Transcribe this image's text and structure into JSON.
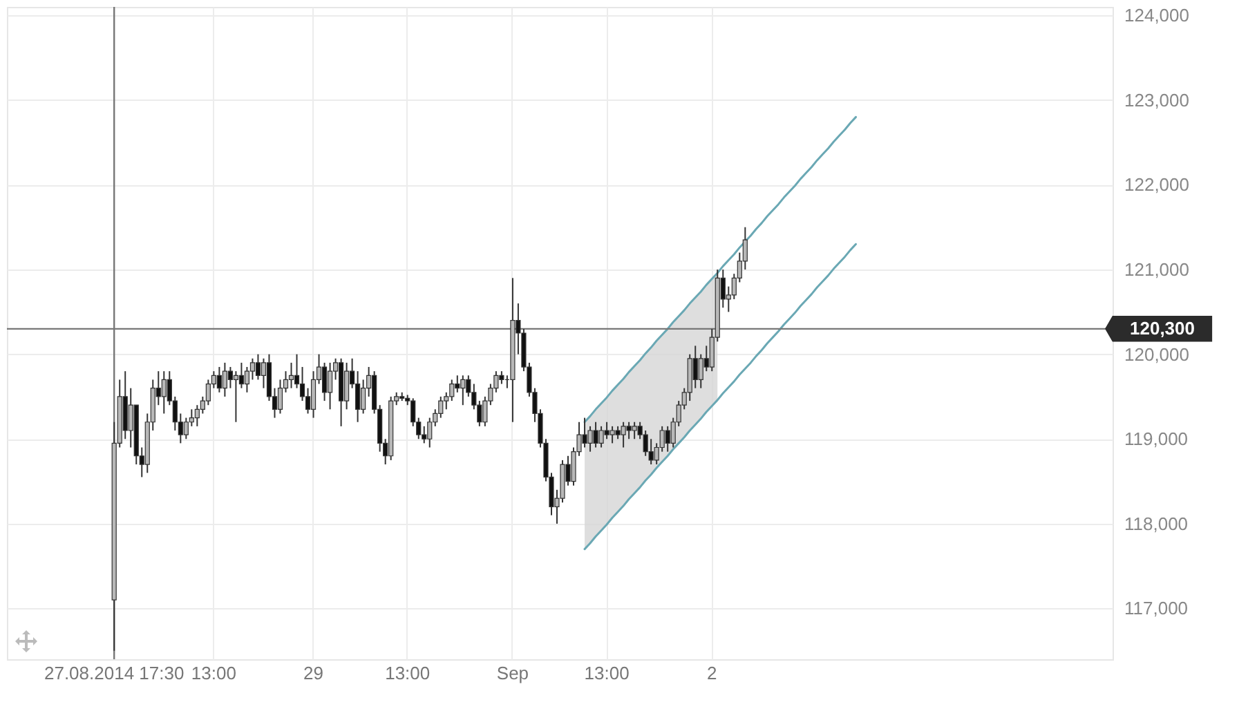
{
  "chart_data": {
    "type": "candlestick",
    "categories": [
      null,
      null,
      null,
      null,
      null,
      null,
      null,
      null,
      null,
      null,
      null,
      null,
      null,
      null,
      null,
      null,
      null,
      null,
      null,
      "27.08.2014 17:30",
      null,
      null,
      null,
      null,
      null,
      null,
      null,
      null,
      null,
      null,
      null,
      null,
      null,
      null,
      null,
      null,
      null,
      "13:00",
      null,
      null,
      null,
      null,
      null,
      null,
      null,
      null,
      null,
      null,
      null,
      null,
      null,
      null,
      null,
      null,
      null,
      "29",
      null,
      null,
      null,
      null,
      null,
      null,
      null,
      null,
      null,
      null,
      null,
      null,
      null,
      null,
      null,
      null,
      "13:00",
      null,
      null,
      null,
      null,
      null,
      null,
      null,
      null,
      null,
      null,
      null,
      null,
      null,
      null,
      null,
      null,
      null,
      null,
      "Sep",
      null,
      null,
      null,
      null,
      null,
      null,
      null,
      null,
      null,
      null,
      null,
      null,
      null,
      null,
      null,
      null,
      "13:00",
      null,
      null,
      null,
      null,
      null,
      null,
      null,
      null,
      null,
      null,
      null,
      null,
      null,
      null,
      null,
      null,
      null,
      null,
      "2",
      null,
      null,
      null,
      null,
      null,
      null,
      null,
      null,
      null,
      null,
      null,
      null,
      null,
      null,
      null,
      null,
      null,
      null,
      null,
      null,
      null,
      null,
      null,
      null,
      null,
      null,
      null,
      null,
      null,
      null,
      null,
      null,
      null,
      null,
      null,
      null,
      null,
      null,
      null,
      null,
      null,
      null,
      null,
      null,
      null,
      null,
      null,
      null,
      null,
      null,
      null,
      null,
      null,
      null,
      null,
      null,
      null,
      null,
      null,
      null,
      null,
      null,
      null,
      null,
      null,
      null,
      null,
      null,
      null,
      null,
      null,
      null
    ],
    "ohlc": [
      null,
      null,
      null,
      null,
      null,
      null,
      null,
      null,
      null,
      null,
      null,
      null,
      null,
      null,
      null,
      null,
      null,
      null,
      null,
      [
        117100,
        119200,
        116500,
        118950
      ],
      [
        118950,
        119700,
        118900,
        119500
      ],
      [
        119500,
        119800,
        119000,
        119100
      ],
      [
        119100,
        119600,
        118900,
        119400
      ],
      [
        119400,
        119400,
        118700,
        118800
      ],
      [
        118800,
        118900,
        118550,
        118700
      ],
      [
        118700,
        119300,
        118600,
        119200
      ],
      [
        119200,
        119700,
        119100,
        119600
      ],
      [
        119600,
        119800,
        119400,
        119500
      ],
      [
        119500,
        119800,
        119300,
        119700
      ],
      [
        119700,
        119800,
        119400,
        119450
      ],
      [
        119450,
        119500,
        119100,
        119200
      ],
      [
        119200,
        119300,
        118950,
        119050
      ],
      [
        119050,
        119250,
        119000,
        119200
      ],
      [
        119200,
        119350,
        119150,
        119250
      ],
      [
        119250,
        119400,
        119150,
        119350
      ],
      [
        119350,
        119500,
        119300,
        119450
      ],
      [
        119450,
        119700,
        119400,
        119650
      ],
      [
        119650,
        119800,
        119600,
        119750
      ],
      [
        119750,
        119850,
        119550,
        119600
      ],
      [
        119600,
        119900,
        119500,
        119800
      ],
      [
        119800,
        119850,
        119600,
        119700
      ],
      [
        119700,
        119800,
        119200,
        119750
      ],
      [
        119750,
        119900,
        119600,
        119650
      ],
      [
        119650,
        119850,
        119550,
        119800
      ],
      [
        119800,
        119950,
        119700,
        119900
      ],
      [
        119900,
        120000,
        119700,
        119750
      ],
      [
        119750,
        119950,
        119600,
        119900
      ],
      [
        119900,
        120000,
        119450,
        119500
      ],
      [
        119500,
        119600,
        119250,
        119350
      ],
      [
        119350,
        119700,
        119300,
        119600
      ],
      [
        119600,
        119800,
        119550,
        119700
      ],
      [
        119700,
        119900,
        119600,
        119750
      ],
      [
        119750,
        120000,
        119600,
        119650
      ],
      [
        119650,
        119850,
        119450,
        119500
      ],
      [
        119500,
        119600,
        119300,
        119350
      ],
      [
        119350,
        119800,
        119250,
        119700
      ],
      [
        119700,
        120000,
        119650,
        119850
      ],
      [
        119850,
        119900,
        119450,
        119550
      ],
      [
        119550,
        119900,
        119350,
        119800
      ],
      [
        119800,
        119950,
        119700,
        119900
      ],
      [
        119900,
        119950,
        119150,
        119450
      ],
      [
        119450,
        119900,
        119350,
        119800
      ],
      [
        119800,
        119950,
        119600,
        119650
      ],
      [
        119650,
        119800,
        119200,
        119350
      ],
      [
        119350,
        119700,
        119300,
        119600
      ],
      [
        119600,
        119850,
        119500,
        119750
      ],
      [
        119750,
        119800,
        119300,
        119350
      ],
      [
        119350,
        119400,
        118850,
        118950
      ],
      [
        118950,
        119000,
        118700,
        118800
      ],
      [
        118800,
        119500,
        118750,
        119450
      ],
      [
        119450,
        119550,
        119400,
        119500
      ],
      [
        119500,
        119550,
        119450,
        119480
      ],
      [
        119480,
        119520,
        119400,
        119450
      ],
      [
        119450,
        119480,
        119150,
        119200
      ],
      [
        119200,
        119250,
        119000,
        119050
      ],
      [
        119050,
        119150,
        118950,
        119000
      ],
      [
        119000,
        119250,
        118900,
        119200
      ],
      [
        119200,
        119350,
        119150,
        119300
      ],
      [
        119300,
        119500,
        119250,
        119450
      ],
      [
        119450,
        119550,
        119350,
        119500
      ],
      [
        119500,
        119700,
        119450,
        119650
      ],
      [
        119650,
        119750,
        119550,
        119600
      ],
      [
        119600,
        119750,
        119400,
        119700
      ],
      [
        119700,
        119750,
        119500,
        119550
      ],
      [
        119550,
        119650,
        119350,
        119400
      ],
      [
        119400,
        119450,
        119150,
        119200
      ],
      [
        119200,
        119500,
        119150,
        119450
      ],
      [
        119450,
        119650,
        119400,
        119600
      ],
      [
        119600,
        119800,
        119550,
        119750
      ],
      [
        119750,
        119800,
        119650,
        119700
      ],
      [
        119700,
        119750,
        119600,
        119700
      ],
      [
        119700,
        120900,
        119200,
        120400
      ],
      [
        120400,
        120600,
        120000,
        120250
      ],
      [
        120250,
        120300,
        119800,
        119850
      ],
      [
        119850,
        119900,
        119500,
        119550
      ],
      [
        119550,
        119600,
        119200,
        119300
      ],
      [
        119300,
        119350,
        118900,
        118950
      ],
      [
        118950,
        119000,
        118500,
        118550
      ],
      [
        118550,
        118600,
        118100,
        118200
      ],
      [
        118200,
        118400,
        118000,
        118300
      ],
      [
        118300,
        118750,
        118250,
        118700
      ],
      [
        118700,
        118800,
        118450,
        118500
      ],
      [
        118500,
        118900,
        118450,
        118850
      ],
      [
        118850,
        119200,
        118800,
        119050
      ],
      [
        119050,
        119250,
        118900,
        118950
      ],
      [
        118950,
        119150,
        118850,
        119100
      ],
      [
        119100,
        119200,
        118900,
        118950
      ],
      [
        118950,
        119150,
        118900,
        119100
      ],
      [
        119100,
        119200,
        119000,
        119050
      ],
      [
        119050,
        119150,
        118950,
        119100
      ],
      [
        119100,
        119150,
        119000,
        119050
      ],
      [
        119050,
        119200,
        118900,
        119150
      ],
      [
        119150,
        119200,
        119000,
        119100
      ],
      [
        119100,
        119200,
        119000,
        119150
      ],
      [
        119150,
        119200,
        119000,
        119050
      ],
      [
        119050,
        119100,
        118800,
        118850
      ],
      [
        118850,
        119000,
        118700,
        118750
      ],
      [
        118750,
        118950,
        118700,
        118900
      ],
      [
        118900,
        119150,
        118850,
        119100
      ],
      [
        119100,
        119150,
        118850,
        118950
      ],
      [
        118950,
        119250,
        118900,
        119200
      ],
      [
        119200,
        119450,
        119150,
        119400
      ],
      [
        119400,
        119600,
        119350,
        119550
      ],
      [
        119550,
        120000,
        119450,
        119950
      ],
      [
        119950,
        120100,
        119600,
        119700
      ],
      [
        119700,
        120000,
        119600,
        119950
      ],
      [
        119950,
        120100,
        119800,
        119850
      ],
      [
        119850,
        120300,
        119800,
        120200
      ],
      [
        120200,
        121000,
        120150,
        120900
      ],
      [
        120900,
        121000,
        120550,
        120650
      ],
      [
        120650,
        120800,
        120500,
        120700
      ],
      [
        120700,
        120950,
        120650,
        120900
      ],
      [
        120900,
        121200,
        120850,
        121100
      ],
      [
        121100,
        121500,
        121000,
        121350
      ],
      null,
      null,
      null,
      null,
      null,
      null,
      null,
      null,
      null,
      null,
      null,
      null,
      null,
      null,
      null,
      null,
      null,
      null,
      null,
      null,
      null,
      null,
      null,
      null,
      null,
      null,
      null,
      null,
      null,
      null,
      null,
      null,
      null,
      null,
      null,
      null,
      null,
      null,
      null,
      null,
      null,
      null,
      null,
      null,
      null,
      null,
      null,
      null,
      null,
      null,
      null,
      null,
      null,
      null,
      null,
      null,
      null,
      null,
      null,
      null,
      null,
      null,
      null,
      null,
      null,
      null
    ],
    "series": [
      {
        "type": "line",
        "color": "#6aa8b4",
        "values": [
          null,
          null,
          null,
          null,
          null,
          null,
          null,
          null,
          null,
          null,
          null,
          null,
          null,
          null,
          null,
          null,
          null,
          null,
          null,
          null,
          null,
          null,
          null,
          null,
          null,
          null,
          null,
          null,
          null,
          null,
          null,
          null,
          null,
          null,
          null,
          null,
          null,
          null,
          null,
          null,
          null,
          null,
          null,
          null,
          null,
          null,
          null,
          null,
          null,
          null,
          null,
          null,
          null,
          null,
          null,
          null,
          null,
          null,
          null,
          null,
          null,
          null,
          null,
          null,
          null,
          null,
          null,
          null,
          null,
          null,
          null,
          null,
          null,
          null,
          null,
          null,
          null,
          null,
          null,
          null,
          null,
          null,
          null,
          null,
          null,
          null,
          null,
          null,
          null,
          null,
          null,
          null,
          null,
          null,
          null,
          null,
          null,
          null,
          null,
          null,
          null,
          null,
          null,
          null,
          119200,
          119270,
          119350,
          119420,
          119490,
          119570,
          119640,
          119710,
          119790,
          119860,
          119930,
          120010,
          120080,
          120160,
          120230,
          120300,
          120380,
          120450,
          120520,
          120600,
          120670,
          120740,
          120820,
          120890,
          120960,
          121040,
          121110,
          121180,
          121260,
          121330,
          121400,
          121480,
          121550,
          121630,
          121700,
          121770,
          121850,
          121920,
          121990,
          122070,
          122140,
          122210,
          122290,
          122360,
          122430,
          122510,
          122580,
          122650,
          122730,
          122800,
          null,
          null,
          null,
          null,
          null,
          null,
          null,
          null,
          null,
          null,
          null,
          null,
          null,
          null,
          null,
          null,
          null,
          null,
          null,
          null,
          null,
          null,
          null,
          null,
          null,
          null,
          null,
          null,
          null,
          null,
          null,
          null,
          null,
          null,
          null,
          null,
          null,
          null,
          null,
          null,
          null,
          null,
          null,
          null,
          null,
          null
        ],
        "upper": [
          null,
          null,
          null,
          null,
          null,
          null,
          null,
          null,
          null,
          null,
          null,
          null,
          null,
          null,
          null,
          null,
          null,
          null,
          null,
          null,
          null,
          null,
          null,
          null,
          null,
          null,
          null,
          null,
          null,
          null,
          null,
          null,
          null,
          null,
          null,
          null,
          null,
          null,
          null,
          null,
          null,
          null,
          null,
          null,
          null,
          null,
          null,
          null,
          null,
          null,
          null,
          null,
          null,
          null,
          null,
          null,
          null,
          null,
          null,
          null,
          null,
          null,
          null,
          null,
          null,
          null,
          null,
          null,
          null,
          null,
          null,
          null,
          null,
          null,
          null,
          null,
          null,
          null,
          null,
          null,
          null,
          null,
          null,
          null,
          null,
          null,
          null,
          null,
          null,
          null,
          null,
          null,
          null,
          null,
          null,
          null,
          null,
          null,
          null,
          null,
          null,
          null,
          null,
          null,
          119200,
          119270,
          119350,
          119420,
          119490,
          119570,
          119640,
          119710,
          119790,
          119860,
          119930,
          120010,
          120080,
          120160,
          120230,
          120300,
          120380,
          120450,
          120520,
          120600,
          120670,
          120740,
          120820,
          120890,
          120960,
          null,
          null,
          null,
          null,
          null,
          null,
          null,
          null,
          null,
          null,
          null,
          null,
          null,
          null,
          null,
          null,
          null,
          null,
          null,
          null,
          null,
          null,
          null,
          null,
          null,
          null,
          null,
          null,
          null,
          null,
          null,
          null,
          null,
          null,
          null,
          null,
          null,
          null,
          null,
          null,
          null,
          null,
          null,
          null,
          null,
          null,
          null,
          null,
          null,
          null,
          null,
          null,
          null,
          null,
          null,
          null,
          null,
          null,
          null,
          null,
          null,
          null,
          null,
          null,
          null,
          null,
          null,
          null,
          null,
          null,
          null
        ],
        "lower": [
          null,
          null,
          null,
          null,
          null,
          null,
          null,
          null,
          null,
          null,
          null,
          null,
          null,
          null,
          null,
          null,
          null,
          null,
          null,
          null,
          null,
          null,
          null,
          null,
          null,
          null,
          null,
          null,
          null,
          null,
          null,
          null,
          null,
          null,
          null,
          null,
          null,
          null,
          null,
          null,
          null,
          null,
          null,
          null,
          null,
          null,
          null,
          null,
          null,
          null,
          null,
          null,
          null,
          null,
          null,
          null,
          null,
          null,
          null,
          null,
          null,
          null,
          null,
          null,
          null,
          null,
          null,
          null,
          null,
          null,
          null,
          null,
          null,
          null,
          null,
          null,
          null,
          null,
          null,
          null,
          null,
          null,
          null,
          null,
          null,
          null,
          null,
          null,
          null,
          null,
          null,
          null,
          null,
          null,
          null,
          null,
          null,
          null,
          null,
          null,
          null,
          null,
          null,
          null,
          117700,
          117770,
          117850,
          117920,
          117990,
          118070,
          118140,
          118210,
          118290,
          118360,
          118430,
          118510,
          118580,
          118660,
          118730,
          118800,
          118880,
          118950,
          119020,
          119100,
          119170,
          119240,
          119320,
          119390,
          119460,
          null,
          null,
          null,
          null,
          null,
          null,
          null,
          null,
          null,
          null,
          null,
          null,
          null,
          null,
          null,
          null,
          null,
          null,
          null,
          null,
          null,
          null,
          null,
          null,
          null,
          null,
          null,
          null,
          null,
          null,
          null,
          null,
          null,
          null,
          null,
          null,
          null,
          null,
          null,
          null,
          null,
          null,
          null,
          null,
          null,
          null,
          null,
          null,
          null,
          null,
          null,
          null,
          null,
          null,
          null,
          null,
          null,
          null,
          null,
          null,
          null,
          null,
          null,
          null,
          null,
          null,
          null,
          null,
          null,
          null,
          null
        ]
      },
      {
        "type": "line",
        "color": "#6aa8b4",
        "values": [
          null,
          null,
          null,
          null,
          null,
          null,
          null,
          null,
          null,
          null,
          null,
          null,
          null,
          null,
          null,
          null,
          null,
          null,
          null,
          null,
          null,
          null,
          null,
          null,
          null,
          null,
          null,
          null,
          null,
          null,
          null,
          null,
          null,
          null,
          null,
          null,
          null,
          null,
          null,
          null,
          null,
          null,
          null,
          null,
          null,
          null,
          null,
          null,
          null,
          null,
          null,
          null,
          null,
          null,
          null,
          null,
          null,
          null,
          null,
          null,
          null,
          null,
          null,
          null,
          null,
          null,
          null,
          null,
          null,
          null,
          null,
          null,
          null,
          null,
          null,
          null,
          null,
          null,
          null,
          null,
          null,
          null,
          null,
          null,
          null,
          null,
          null,
          null,
          null,
          null,
          null,
          null,
          null,
          null,
          null,
          null,
          null,
          null,
          null,
          null,
          null,
          null,
          null,
          null,
          117700,
          117770,
          117850,
          117920,
          117990,
          118070,
          118140,
          118210,
          118290,
          118360,
          118430,
          118510,
          118580,
          118660,
          118730,
          118800,
          118880,
          118950,
          119020,
          119100,
          119170,
          119240,
          119320,
          119390,
          119460,
          119540,
          119610,
          119680,
          119760,
          119830,
          119900,
          119980,
          120050,
          120130,
          120200,
          120270,
          120350,
          120420,
          120490,
          120570,
          120640,
          120710,
          120790,
          120860,
          120930,
          121010,
          121080,
          121150,
          121230,
          121300,
          null,
          null,
          null,
          null,
          null,
          null,
          null,
          null,
          null,
          null,
          null,
          null,
          null,
          null,
          null,
          null,
          null,
          null,
          null,
          null,
          null,
          null,
          null,
          null,
          null,
          null,
          null,
          null,
          null,
          null,
          null,
          null,
          null,
          null,
          null,
          null,
          null,
          null,
          null,
          null,
          null,
          null,
          null,
          null,
          null,
          null
        ]
      }
    ],
    "ylim": [
      116400,
      124100
    ],
    "yticks": [
      {
        "value": 117000,
        "label": "117,000"
      },
      {
        "value": 118000,
        "label": "118,000"
      },
      {
        "value": 119000,
        "label": "119,000"
      },
      {
        "value": 120000,
        "label": "120,000"
      },
      {
        "value": 121000,
        "label": "121,000"
      },
      {
        "value": 122000,
        "label": "122,000"
      },
      {
        "value": 123000,
        "label": "123,000"
      },
      {
        "value": 124000,
        "label": "124,000"
      }
    ],
    "grid": true,
    "ref_lines": [
      {
        "axis": "x",
        "value": "27.08.2014 17:30"
      },
      {
        "axis": "y",
        "value": 120300,
        "label": "120,300"
      }
    ]
  }
}
